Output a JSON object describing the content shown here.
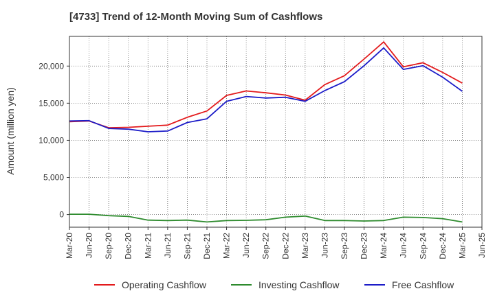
{
  "title": "[4733]  Trend of 12-Month Moving Sum of Cashflows",
  "ylabel": "Amount (million yen)",
  "chart_data": {
    "type": "line",
    "title": "[4733]  Trend of 12-Month Moving Sum of Cashflows",
    "xlabel": "",
    "ylabel": "Amount (million yen)",
    "ylim": [
      -1700,
      24000
    ],
    "yticks": [
      0,
      5000,
      10000,
      15000,
      20000
    ],
    "ytick_labels": [
      "0",
      "5,000",
      "10,000",
      "15,000",
      "20,000"
    ],
    "xtick_labels": [
      "Mar-20",
      "Jun-20",
      "Sep-20",
      "Dec-20",
      "Mar-21",
      "Jun-21",
      "Sep-21",
      "Dec-21",
      "Mar-22",
      "Jun-22",
      "Sep-22",
      "Dec-22",
      "Mar-23",
      "Jun-23",
      "Sep-23",
      "Dec-23",
      "Mar-24",
      "Jun-24",
      "Sep-24",
      "Dec-24",
      "Mar-25",
      "Jun-25"
    ],
    "categories": [
      "Mar-20",
      "Jun-20",
      "Sep-20",
      "Dec-20",
      "Mar-21",
      "Jun-21",
      "Sep-21",
      "Dec-21",
      "Mar-22",
      "Jun-22",
      "Sep-22",
      "Dec-22",
      "Mar-23",
      "Jun-23",
      "Sep-23",
      "Dec-23",
      "Mar-24",
      "Jun-24",
      "Sep-24",
      "Dec-24",
      "Mar-25"
    ],
    "grid": true,
    "legend_position": "bottom",
    "series": [
      {
        "name": "Operating Cashflow",
        "color": "#e31a1c",
        "values": [
          12500,
          12600,
          11700,
          11750,
          11900,
          12050,
          13100,
          13950,
          16050,
          16650,
          16400,
          16100,
          15400,
          17500,
          18700,
          20950,
          23250,
          19900,
          20450,
          19150,
          17700
        ]
      },
      {
        "name": "Investing Cashflow",
        "color": "#2e8b2e",
        "values": [
          50,
          50,
          -150,
          -250,
          -750,
          -800,
          -750,
          -1000,
          -800,
          -780,
          -700,
          -350,
          -200,
          -800,
          -800,
          -870,
          -800,
          -350,
          -400,
          -550,
          -1000
        ]
      },
      {
        "name": "Free Cashflow",
        "color": "#1c1cc8",
        "values": [
          12600,
          12650,
          11600,
          11500,
          11150,
          11250,
          12400,
          12900,
          15250,
          15900,
          15700,
          15800,
          15250,
          16700,
          17900,
          20050,
          22450,
          19550,
          20050,
          18500,
          16600
        ]
      }
    ]
  }
}
